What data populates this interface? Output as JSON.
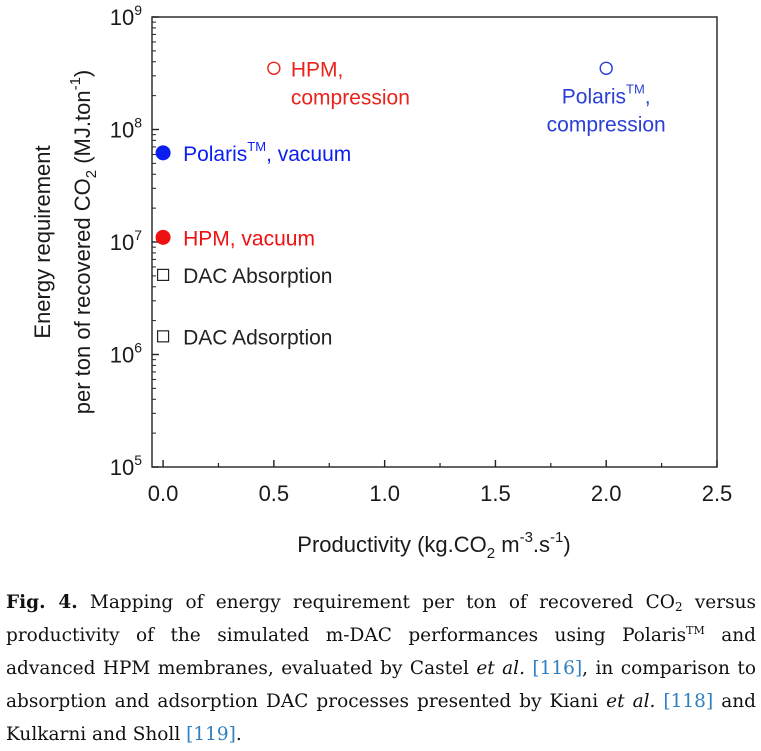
{
  "chart_data": {
    "type": "scatter",
    "x_axis": {
      "label_parts": [
        "Productivity (kg.CO",
        "2",
        " m",
        "-3",
        ".s",
        "-1",
        ")"
      ],
      "range": [
        -0.05,
        2.5
      ],
      "ticks": [
        0.0,
        0.5,
        1.0,
        1.5,
        2.0,
        2.5
      ],
      "tick_labels": [
        "0.0",
        "0.5",
        "1.0",
        "1.5",
        "2.0",
        "2.5"
      ]
    },
    "y_axis": {
      "label_line1": "Energy requirement",
      "label_line2_parts": [
        "per ton of recovered CO",
        "2",
        " (MJ.ton",
        "-1",
        ")"
      ],
      "scale": "log",
      "range": [
        100000,
        1000000000
      ],
      "ticks": [
        100000,
        1000000,
        10000000,
        100000000,
        1000000000
      ],
      "tick_labels": [
        {
          "base": "10",
          "exp": "5"
        },
        {
          "base": "10",
          "exp": "6"
        },
        {
          "base": "10",
          "exp": "7"
        },
        {
          "base": "10",
          "exp": "8"
        },
        {
          "base": "10",
          "exp": "9"
        }
      ]
    },
    "grid": false,
    "points": [
      {
        "label_lines": [
          "HPM,",
          "compression"
        ],
        "x": 0.5,
        "y": 350000000,
        "marker": "open-circle",
        "color": "#e8241c"
      },
      {
        "label_lines": [
          "Polaris^TM,",
          "compression"
        ],
        "x": 2.0,
        "y": 350000000,
        "marker": "open-circle",
        "color": "#2a3fd6"
      },
      {
        "label_lines": [
          "Polaris^TM, vacuum"
        ],
        "x": 0.0,
        "y": 62000000,
        "marker": "filled-circle",
        "color": "#0a1ef0"
      },
      {
        "label_lines": [
          "HPM, vacuum"
        ],
        "x": 0.0,
        "y": 11000000,
        "marker": "filled-circle",
        "color": "#ee1111"
      },
      {
        "label_lines": [
          "DAC Absorption"
        ],
        "x": 0.0,
        "y": 5100000,
        "marker": "open-square",
        "color": "#222222"
      },
      {
        "label_lines": [
          "DAC Adsorption"
        ],
        "x": 0.0,
        "y": 1450000,
        "marker": "open-square",
        "color": "#222222"
      }
    ]
  },
  "caption": {
    "fig_label": "Fig. 4.",
    "text_1": " Mapping of energy requirement per ton of recovered CO",
    "sub_1": "2",
    "text_2": " versus productivity of the simulated m-DAC performances using Polaris",
    "sup_1": "TM",
    "text_3": " and advanced HPM membranes, evaluated by Castel ",
    "et_al_1": "et al.",
    "ref_1": " [116]",
    "text_4": ", in comparison to absorption and adsorption DAC processes presented by Kiani ",
    "et_al_2": "et al.",
    "ref_2": " [118]",
    "text_5": " and Kulkarni and Sholl ",
    "ref_3": "[119]",
    "text_6": "."
  }
}
